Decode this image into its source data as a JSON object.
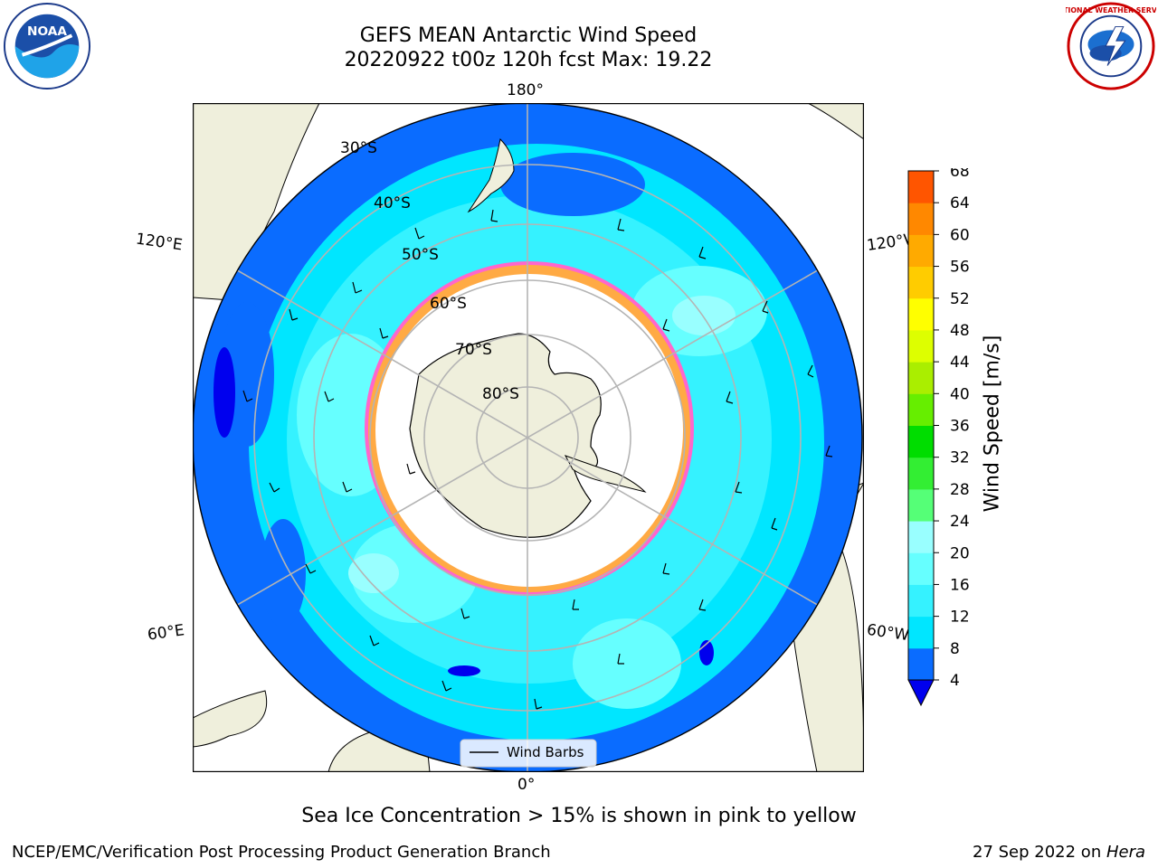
{
  "title_line1": "GEFS MEAN Antarctic Wind Speed",
  "title_line2": "20220922 t00z 120h fcst   Max: 19.22",
  "caption": "Sea Ice Concentration > 15% is shown in pink to yellow",
  "footer_left": "NCEP/EMC/Verification Post Processing Product Generation Branch",
  "footer_date": "27 Sep 2022 on ",
  "footer_machine": "Hera",
  "logos": {
    "noaa_text": "NOAA",
    "nws_text": "NATIONAL WEATHER SERVICE"
  },
  "map": {
    "projection": "south-polar-stereographic",
    "lon_labels": {
      "top": "180°",
      "bottom": "0°",
      "upper_left": "120°E",
      "lower_left": "60°E",
      "upper_right": "120°W",
      "lower_right": "60°W"
    },
    "lat_labels": [
      "30°S",
      "40°S",
      "50°S",
      "60°S",
      "70°S",
      "80°S"
    ],
    "legend": {
      "label": "Wind Barbs"
    }
  },
  "colorbar": {
    "label": "Wind Speed [m/s]",
    "ticks": [
      "4",
      "8",
      "12",
      "16",
      "20",
      "24",
      "28",
      "32",
      "36",
      "40",
      "44",
      "48",
      "52",
      "56",
      "60",
      "64",
      "68"
    ],
    "colors": [
      "#0a6cff",
      "#00e6ff",
      "#35f2ff",
      "#66ffff",
      "#99ffff",
      "#55ff77",
      "#33ee33",
      "#00dd00",
      "#66ee00",
      "#aaee00",
      "#ddff00",
      "#ffff00",
      "#ffcc00",
      "#ffaa00",
      "#ff8800",
      "#ff5500",
      "#ff2200",
      "#ff0000"
    ],
    "under_color": "#0000ee"
  }
}
